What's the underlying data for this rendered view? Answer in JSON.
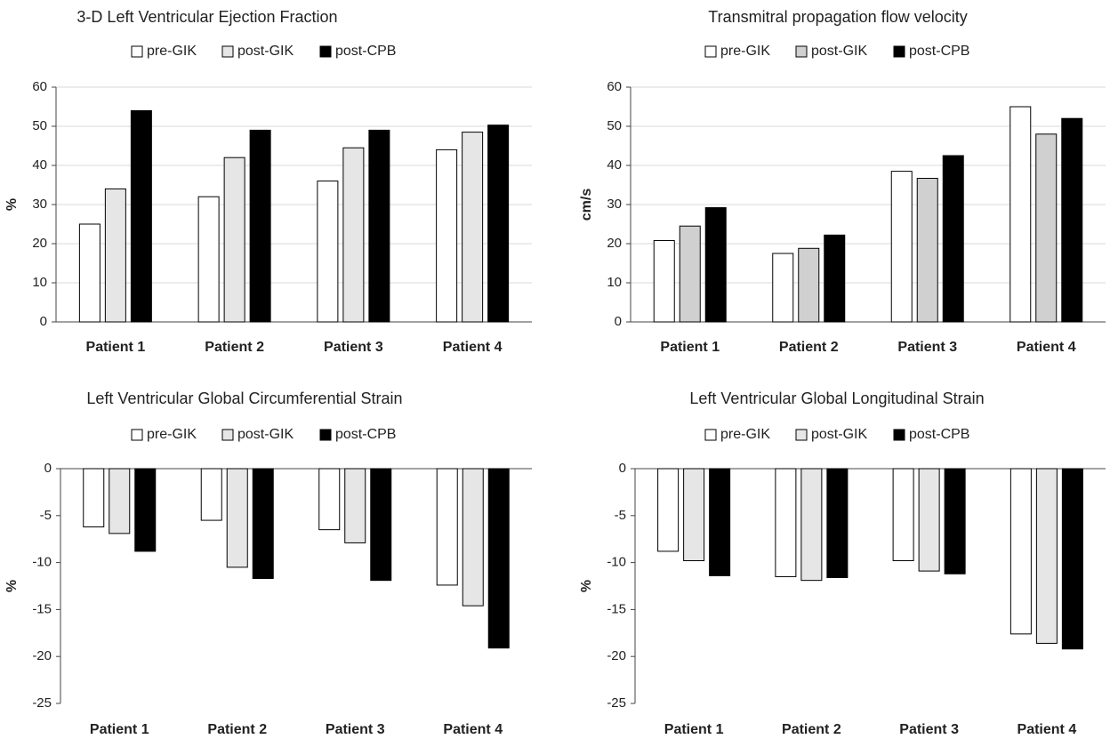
{
  "chart_data": [
    {
      "type": "bar",
      "title": "3-D Left Ventricular Ejection Fraction",
      "xlabel": "",
      "ylabel": "%",
      "ylim": [
        0,
        60
      ],
      "yticks": [
        0,
        10,
        20,
        30,
        40,
        50,
        60
      ],
      "categories": [
        "Patient 1",
        "Patient 2",
        "Patient 3",
        "Patient 4"
      ],
      "series": [
        {
          "name": "pre-GIK",
          "color": "#ffffff",
          "values": [
            25,
            32,
            36,
            44
          ]
        },
        {
          "name": "post-GIK",
          "color": "#e6e6e6",
          "values": [
            34,
            42,
            44.5,
            48.5
          ]
        },
        {
          "name": "post-CPB",
          "color": "#000000",
          "values": [
            54,
            49,
            49,
            50.3
          ]
        }
      ],
      "legend": "top",
      "grid": true
    },
    {
      "type": "bar",
      "title": "Transmitral propagation flow velocity",
      "xlabel": "",
      "ylabel": "cm/s",
      "ylim": [
        0,
        60
      ],
      "yticks": [
        0,
        10,
        20,
        30,
        40,
        50,
        60
      ],
      "categories": [
        "Patient 1",
        "Patient 2",
        "Patient 3",
        "Patient 4"
      ],
      "series": [
        {
          "name": "pre-GIK",
          "color": "#ffffff",
          "values": [
            20.8,
            17.5,
            38.5,
            55
          ]
        },
        {
          "name": "post-GIK",
          "color": "#d0d0d0",
          "values": [
            24.5,
            18.8,
            36.7,
            48
          ]
        },
        {
          "name": "post-CPB",
          "color": "#000000",
          "values": [
            29.2,
            22.2,
            42.5,
            52
          ]
        }
      ],
      "legend": "top",
      "grid": true
    },
    {
      "type": "bar",
      "title": "Left Ventricular Global Circumferential Strain",
      "xlabel": "",
      "ylabel": "%",
      "ylim": [
        -25,
        0
      ],
      "yticks": [
        0,
        -5,
        -10,
        -15,
        -20,
        -25
      ],
      "categories": [
        "Patient 1",
        "Patient 2",
        "Patient 3",
        "Patient 4"
      ],
      "series": [
        {
          "name": "pre-GIK",
          "color": "#ffffff",
          "values": [
            -6.2,
            -5.5,
            -6.5,
            -12.4
          ]
        },
        {
          "name": "post-GIK",
          "color": "#e6e6e6",
          "values": [
            -6.9,
            -10.5,
            -7.9,
            -14.6
          ]
        },
        {
          "name": "post-CPB",
          "color": "#000000",
          "values": [
            -8.8,
            -11.7,
            -11.9,
            -19.1
          ]
        }
      ],
      "legend": "top",
      "grid": false
    },
    {
      "type": "bar",
      "title": "Left Ventricular Global Longitudinal Strain",
      "xlabel": "",
      "ylabel": "%",
      "ylim": [
        -25,
        0
      ],
      "yticks": [
        0,
        -5,
        -10,
        -15,
        -20,
        -25
      ],
      "categories": [
        "Patient 1",
        "Patient 2",
        "Patient 3",
        "Patient 4"
      ],
      "series": [
        {
          "name": "pre-GIK",
          "color": "#ffffff",
          "values": [
            -8.8,
            -11.5,
            -9.8,
            -17.6
          ]
        },
        {
          "name": "post-GIK",
          "color": "#e6e6e6",
          "values": [
            -9.8,
            -11.9,
            -10.9,
            -18.6
          ]
        },
        {
          "name": "post-CPB",
          "color": "#000000",
          "values": [
            -11.4,
            -11.6,
            -11.2,
            -19.2
          ]
        }
      ],
      "legend": "top",
      "grid": false
    }
  ]
}
